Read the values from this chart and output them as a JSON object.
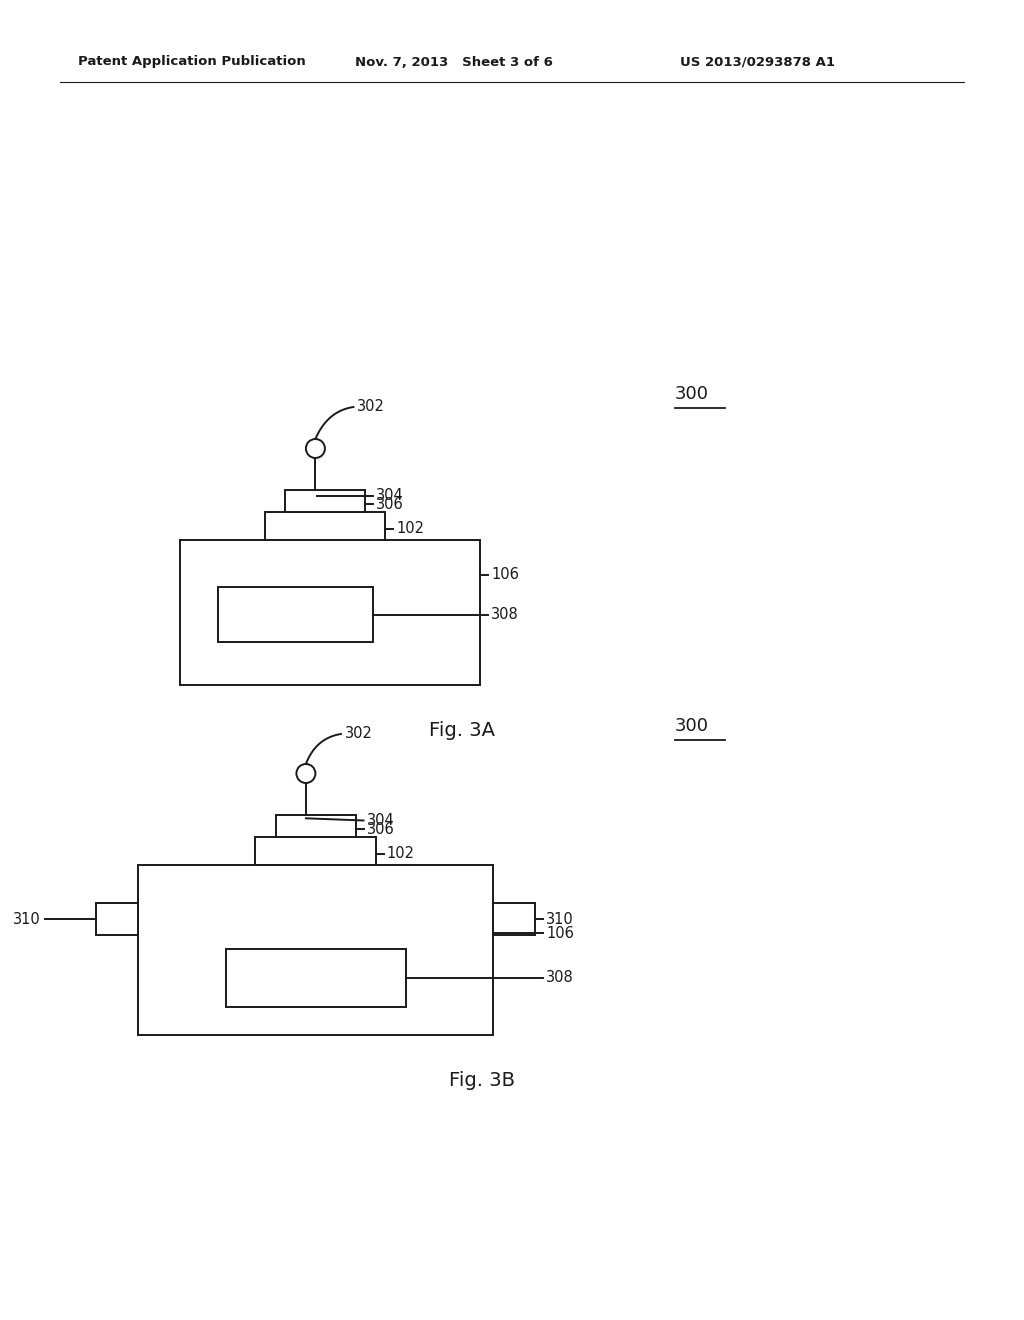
{
  "bg_color": "#ffffff",
  "line_color": "#1a1a1a",
  "header_left": "Patent Application Publication",
  "header_mid": "Nov. 7, 2013   Sheet 3 of 6",
  "header_right": "US 2013/0293878 A1",
  "fig3a_label": "Fig. 3A",
  "fig3b_label": "Fig. 3B",
  "fig_width": 10.24,
  "fig_height": 13.2,
  "dpi": 100
}
